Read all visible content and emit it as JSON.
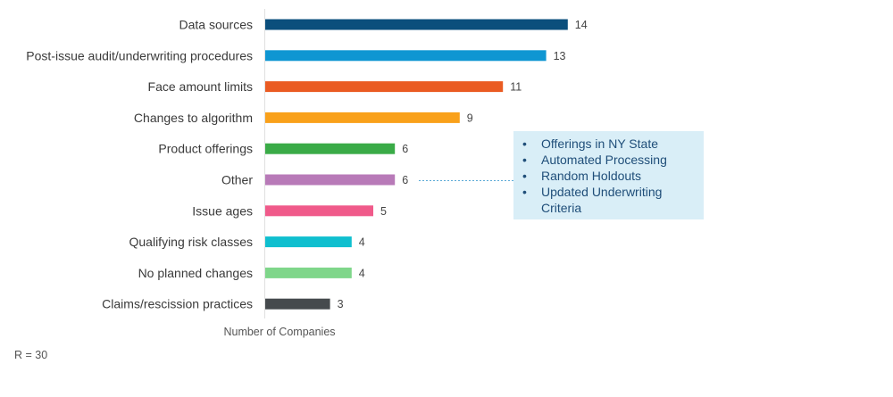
{
  "chart_data": {
    "type": "bar",
    "orientation": "horizontal",
    "title": "",
    "xlabel": "Number of Companies",
    "ylabel": "",
    "xlim": [
      0,
      14
    ],
    "categories": [
      "Data sources",
      "Post-issue audit/underwriting procedures",
      "Face amount limits",
      "Changes to algorithm",
      "Product offerings",
      "Other",
      "Issue ages",
      "Qualifying risk classes",
      "No planned changes",
      "Claims/rescission practices"
    ],
    "values": [
      14,
      13,
      11,
      9,
      6,
      6,
      5,
      4,
      4,
      3
    ],
    "colors": [
      "#0b4f7c",
      "#0f96d2",
      "#ea5b22",
      "#f9a11b",
      "#3aab47",
      "#b87ab8",
      "#f05a8a",
      "#0fbfcf",
      "#7fd68a",
      "#454a4d"
    ],
    "annotation": {
      "target": "Other",
      "items": [
        "Offerings in NY State",
        "Automated Processing",
        "Random Holdouts",
        "Updated Underwriting Criteria"
      ]
    }
  },
  "footnote": "R = 30"
}
